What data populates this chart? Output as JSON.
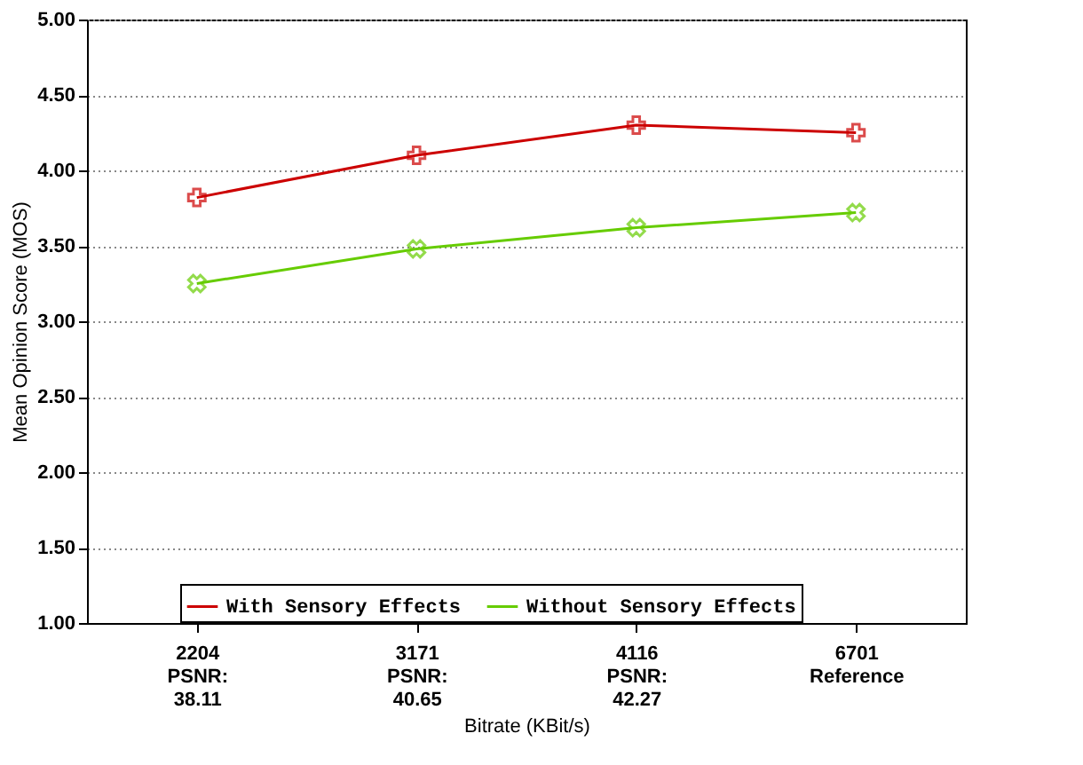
{
  "chart_data": {
    "type": "line",
    "xlabel": "Bitrate (KBit/s)",
    "ylabel": "Mean Opinion Score (MOS)",
    "categories": [
      "2204\nPSNR:\n38.11",
      "3171\nPSNR:\n40.65",
      "4116\nPSNR:\n42.27",
      "6701\nReference"
    ],
    "series": [
      {
        "name": "With Sensory Effects",
        "color": "#cc0000",
        "values": [
          3.82,
          4.1,
          4.3,
          4.25
        ]
      },
      {
        "name": "Without Sensory Effects",
        "color": "#66cc00",
        "values": [
          3.25,
          3.48,
          3.62,
          3.72
        ]
      }
    ],
    "ylim": [
      1,
      5
    ],
    "yticks": [
      {
        "value": 1,
        "label": "1.00"
      },
      {
        "value": 1.5,
        "label": "1.50"
      },
      {
        "value": 2,
        "label": "2.00"
      },
      {
        "value": 2.5,
        "label": "2.50"
      },
      {
        "value": 3,
        "label": "3.00"
      },
      {
        "value": 3.5,
        "label": "3.50"
      },
      {
        "value": 4,
        "label": "4.00"
      },
      {
        "value": 4.5,
        "label": "4.50"
      },
      {
        "value": 5,
        "label": "5.00"
      }
    ],
    "grid": "y",
    "legend": "bottom",
    "marker": "cross",
    "line_style": "solid"
  }
}
